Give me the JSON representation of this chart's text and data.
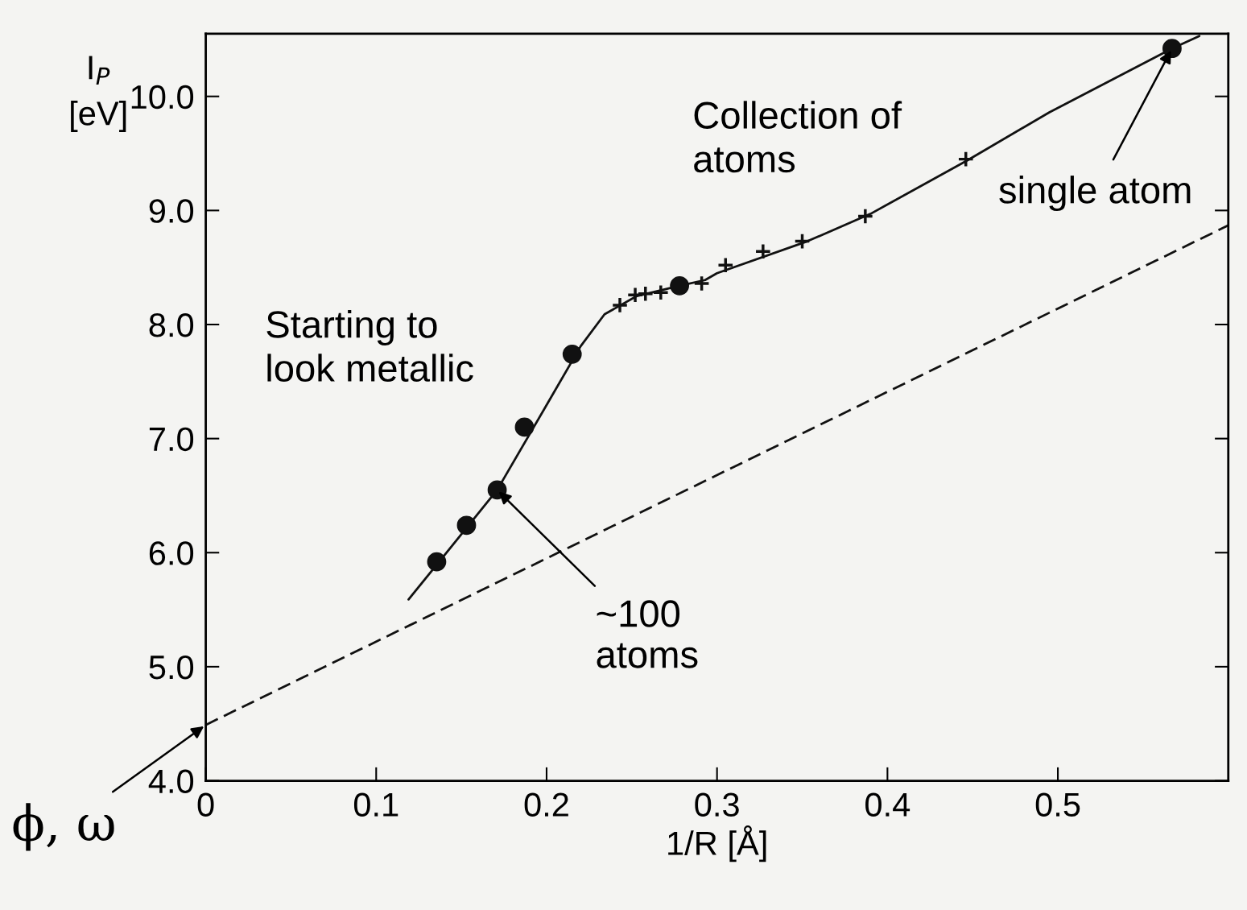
{
  "chart_data": {
    "type": "line",
    "xlabel": "1/R [Å]",
    "ylabel": "I$_{P}$\n[eV]",
    "xlim": [
      0,
      0.6
    ],
    "ylim": [
      4.0,
      10.55
    ],
    "xticks": [
      0,
      0.1,
      0.2,
      0.3,
      0.4,
      0.5
    ],
    "yticks": [
      {
        "value": 4,
        "label": "4.0"
      },
      {
        "value": 5,
        "label": "5.0"
      },
      {
        "value": 6,
        "label": "6.0"
      },
      {
        "value": 7,
        "label": "7.0"
      },
      {
        "value": 8,
        "label": "8.0"
      },
      {
        "value": 9,
        "label": "9.0"
      },
      {
        "value": 10,
        "label": "10.0"
      }
    ],
    "series": [
      {
        "color": "#111111",
        "line_style": "solid",
        "marker": "none",
        "x": [
          0.119,
          0.144,
          0.171,
          0.201,
          0.22,
          0.234,
          0.253,
          0.278,
          0.293,
          0.3,
          0.353,
          0.39,
          0.447,
          0.495,
          0.567,
          0.583
        ],
        "values": [
          5.59,
          6.05,
          6.55,
          7.32,
          7.81,
          8.09,
          8.25,
          8.34,
          8.39,
          8.45,
          8.73,
          8.97,
          9.44,
          9.86,
          10.42,
          10.53
        ]
      },
      {
        "color": "#111111",
        "line_style": "dashed",
        "marker": "none",
        "x": [
          0,
          0.6
        ],
        "values": [
          4.49,
          8.87
        ]
      },
      {
        "type": "scatter",
        "color": "#111111",
        "marker": "circle",
        "x": [
          0.1355,
          0.153,
          0.171,
          0.187,
          0.215,
          0.278,
          0.567
        ],
        "values": [
          5.92,
          6.24,
          6.55,
          7.1,
          7.74,
          8.34,
          10.42
        ]
      },
      {
        "type": "scatter",
        "color": "#111111",
        "marker": "cross",
        "x": [
          0.243,
          0.252,
          0.258,
          0.267,
          0.291,
          0.305,
          0.327,
          0.35,
          0.387,
          0.446
        ],
        "values": [
          8.17,
          8.26,
          8.27,
          8.28,
          8.36,
          8.52,
          8.64,
          8.73,
          8.95,
          9.45
        ]
      }
    ],
    "annotations": [
      "Collection of\natoms",
      "Starting to\nlook metallic",
      {
        "text": "~100\natoms",
        "x": 0.171,
        "y": 6.55
      },
      {
        "text": "single atom",
        "x": 0.567,
        "y": 10.42
      },
      {
        "text": "ϕ, ω",
        "x": 0,
        "y": 4.49
      }
    ]
  }
}
